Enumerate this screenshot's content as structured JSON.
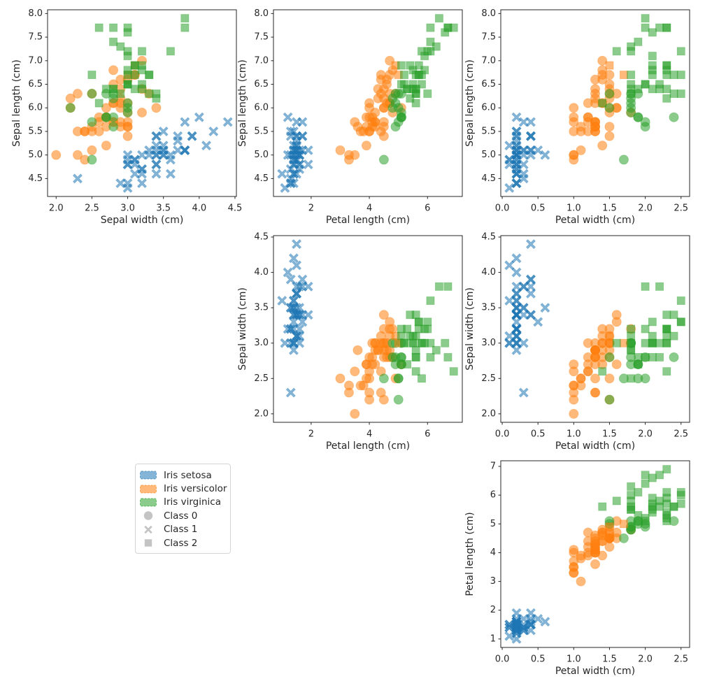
{
  "figure": {
    "background": "#ffffff",
    "text_color": "#262626",
    "spine_color": "#262626"
  },
  "chart_data": {
    "type": "scatter",
    "dataset": "Iris",
    "columns": [
      "sepal_length",
      "sepal_width",
      "petal_length",
      "petal_width",
      "species_index",
      "cluster_index"
    ],
    "species": [
      "Iris setosa",
      "Iris versicolor",
      "Iris virginica"
    ],
    "species_colors": [
      "#1f77b4",
      "#ff7f0e",
      "#2ca02c"
    ],
    "clusters": [
      "Class 0",
      "Class 1",
      "Class 2"
    ],
    "cluster_markers": [
      "circle",
      "x",
      "square"
    ],
    "marker_alpha": 0.55,
    "grid": false,
    "axes": {
      "sepal_length": {
        "label": "Sepal length (cm)",
        "lim": [
          4.12,
          8.08
        ]
      },
      "sepal_width": {
        "label": "Sepal width (cm)",
        "lim": [
          1.88,
          4.52
        ]
      },
      "petal_length": {
        "label": "Petal length (cm)",
        "lim": [
          0.705,
          7.195
        ]
      },
      "petal_width": {
        "label": "Petal width (cm)",
        "lim": [
          -0.02,
          2.62
        ]
      }
    },
    "ticks": {
      "sepal_length": {
        "values": [
          4.5,
          5,
          5.5,
          6,
          6.5,
          7,
          7.5,
          8
        ],
        "labels": [
          "4.5",
          "5.0",
          "5.5",
          "6.0",
          "6.5",
          "7.0",
          "7.5",
          "8.0"
        ]
      },
      "sepal_width": {
        "values": [
          2,
          2.5,
          3,
          3.5,
          4,
          4.5
        ],
        "labels": [
          "2.0",
          "2.5",
          "3.0",
          "3.5",
          "4.0",
          "4.5"
        ]
      },
      "petal_length_x": {
        "values": [
          2,
          4,
          6
        ],
        "labels": [
          "2",
          "4",
          "6"
        ]
      },
      "petal_length_y": {
        "values": [
          1,
          2,
          3,
          4,
          5,
          6,
          7
        ],
        "labels": [
          "1",
          "2",
          "3",
          "4",
          "5",
          "6",
          "7"
        ]
      },
      "petal_width": {
        "values": [
          0,
          0.5,
          1,
          1.5,
          2,
          2.5
        ],
        "labels": [
          "0.0",
          "0.5",
          "1.0",
          "1.5",
          "2.0",
          "2.5"
        ]
      }
    },
    "subplots": [
      {
        "key": "a",
        "x": "sepal_width",
        "y": "sepal_length",
        "xlabel": "Sepal width (cm)",
        "ylabel": "Sepal length (cm)",
        "xticks": "sepal_width",
        "yticks": "sepal_length"
      },
      {
        "key": "b",
        "x": "petal_length",
        "y": "sepal_length",
        "xlabel": "Petal length (cm)",
        "ylabel": "Sepal length (cm)",
        "xticks": "petal_length_x",
        "yticks": "sepal_length"
      },
      {
        "key": "c",
        "x": "petal_width",
        "y": "sepal_length",
        "xlabel": "Petal width (cm)",
        "ylabel": "Sepal length (cm)",
        "xticks": "petal_width",
        "yticks": "sepal_length"
      },
      {
        "key": "d",
        "x": "petal_length",
        "y": "sepal_width",
        "xlabel": "Petal length (cm)",
        "ylabel": "Sepal width (cm)",
        "xticks": "petal_length_x",
        "yticks": "sepal_width"
      },
      {
        "key": "e",
        "x": "petal_width",
        "y": "sepal_width",
        "xlabel": "Petal width (cm)",
        "ylabel": "Sepal width (cm)",
        "xticks": "petal_width",
        "yticks": "sepal_width"
      },
      {
        "key": "f",
        "x": "petal_width",
        "y": "petal_length",
        "xlabel": "Petal width (cm)",
        "ylabel": "Petal length (cm)",
        "xticks": "petal_width",
        "yticks": "petal_length_y"
      }
    ],
    "legend": {
      "marker_color": "#c4c4c4",
      "entries": [
        {
          "label": "Iris setosa",
          "swatch": "patch",
          "color": "#1f77b4"
        },
        {
          "label": "Iris versicolor",
          "swatch": "patch",
          "color": "#ff7f0e"
        },
        {
          "label": "Iris virginica",
          "swatch": "patch",
          "color": "#2ca02c"
        },
        {
          "label": "Class 0",
          "swatch": "marker",
          "marker": "circle"
        },
        {
          "label": "Class 1",
          "swatch": "marker",
          "marker": "x"
        },
        {
          "label": "Class 2",
          "swatch": "marker",
          "marker": "square"
        }
      ]
    },
    "points": [
      [
        5.1,
        3.5,
        1.4,
        0.2,
        0,
        1
      ],
      [
        4.9,
        3.0,
        1.4,
        0.2,
        0,
        1
      ],
      [
        4.7,
        3.2,
        1.3,
        0.2,
        0,
        1
      ],
      [
        4.6,
        3.1,
        1.5,
        0.2,
        0,
        1
      ],
      [
        5.0,
        3.6,
        1.4,
        0.2,
        0,
        1
      ],
      [
        5.4,
        3.9,
        1.7,
        0.4,
        0,
        1
      ],
      [
        4.6,
        3.4,
        1.4,
        0.3,
        0,
        1
      ],
      [
        5.0,
        3.4,
        1.5,
        0.2,
        0,
        1
      ],
      [
        4.4,
        2.9,
        1.4,
        0.2,
        0,
        1
      ],
      [
        4.9,
        3.1,
        1.5,
        0.1,
        0,
        1
      ],
      [
        5.4,
        3.7,
        1.5,
        0.2,
        0,
        1
      ],
      [
        4.8,
        3.4,
        1.6,
        0.2,
        0,
        1
      ],
      [
        4.8,
        3.0,
        1.4,
        0.1,
        0,
        1
      ],
      [
        4.3,
        3.0,
        1.1,
        0.1,
        0,
        1
      ],
      [
        5.8,
        4.0,
        1.2,
        0.2,
        0,
        1
      ],
      [
        5.7,
        4.4,
        1.5,
        0.4,
        0,
        1
      ],
      [
        5.4,
        3.9,
        1.3,
        0.4,
        0,
        1
      ],
      [
        5.1,
        3.5,
        1.4,
        0.3,
        0,
        1
      ],
      [
        5.7,
        3.8,
        1.7,
        0.3,
        0,
        1
      ],
      [
        5.1,
        3.8,
        1.5,
        0.3,
        0,
        1
      ],
      [
        5.4,
        3.4,
        1.7,
        0.2,
        0,
        1
      ],
      [
        5.1,
        3.7,
        1.5,
        0.4,
        0,
        1
      ],
      [
        4.6,
        3.6,
        1.0,
        0.2,
        0,
        1
      ],
      [
        5.1,
        3.3,
        1.7,
        0.5,
        0,
        1
      ],
      [
        4.8,
        3.4,
        1.9,
        0.2,
        0,
        1
      ],
      [
        5.0,
        3.0,
        1.6,
        0.2,
        0,
        1
      ],
      [
        5.0,
        3.4,
        1.6,
        0.4,
        0,
        1
      ],
      [
        5.2,
        3.5,
        1.5,
        0.2,
        0,
        1
      ],
      [
        5.2,
        3.4,
        1.4,
        0.2,
        0,
        1
      ],
      [
        4.7,
        3.2,
        1.6,
        0.2,
        0,
        1
      ],
      [
        4.8,
        3.1,
        1.6,
        0.2,
        0,
        1
      ],
      [
        5.4,
        3.4,
        1.5,
        0.4,
        0,
        1
      ],
      [
        5.2,
        4.1,
        1.5,
        0.1,
        0,
        1
      ],
      [
        5.5,
        4.2,
        1.4,
        0.2,
        0,
        1
      ],
      [
        4.9,
        3.1,
        1.5,
        0.2,
        0,
        1
      ],
      [
        5.0,
        3.2,
        1.2,
        0.2,
        0,
        1
      ],
      [
        5.5,
        3.5,
        1.3,
        0.2,
        0,
        1
      ],
      [
        4.9,
        3.6,
        1.4,
        0.1,
        0,
        1
      ],
      [
        4.4,
        3.0,
        1.3,
        0.2,
        0,
        1
      ],
      [
        5.1,
        3.4,
        1.5,
        0.2,
        0,
        1
      ],
      [
        5.0,
        3.5,
        1.3,
        0.3,
        0,
        1
      ],
      [
        4.5,
        2.3,
        1.3,
        0.3,
        0,
        1
      ],
      [
        4.4,
        3.2,
        1.3,
        0.2,
        0,
        1
      ],
      [
        5.0,
        3.5,
        1.6,
        0.6,
        0,
        1
      ],
      [
        5.1,
        3.8,
        1.9,
        0.4,
        0,
        1
      ],
      [
        4.8,
        3.0,
        1.4,
        0.3,
        0,
        1
      ],
      [
        5.1,
        3.8,
        1.6,
        0.2,
        0,
        1
      ],
      [
        4.6,
        3.2,
        1.4,
        0.2,
        0,
        1
      ],
      [
        5.3,
        3.7,
        1.5,
        0.2,
        0,
        1
      ],
      [
        5.0,
        3.3,
        1.4,
        0.2,
        0,
        1
      ],
      [
        7.0,
        3.2,
        4.7,
        1.4,
        1,
        0
      ],
      [
        6.4,
        3.2,
        4.5,
        1.5,
        1,
        0
      ],
      [
        6.9,
        3.1,
        4.9,
        1.5,
        1,
        2
      ],
      [
        5.5,
        2.3,
        4.0,
        1.3,
        1,
        0
      ],
      [
        6.5,
        2.8,
        4.6,
        1.5,
        1,
        0
      ],
      [
        5.7,
        2.8,
        4.5,
        1.3,
        1,
        0
      ],
      [
        6.3,
        3.3,
        4.7,
        1.6,
        1,
        0
      ],
      [
        4.9,
        2.4,
        3.3,
        1.0,
        1,
        0
      ],
      [
        6.6,
        2.9,
        4.6,
        1.3,
        1,
        0
      ],
      [
        5.2,
        2.7,
        3.9,
        1.4,
        1,
        0
      ],
      [
        5.0,
        2.0,
        3.5,
        1.0,
        1,
        0
      ],
      [
        5.9,
        3.0,
        4.2,
        1.5,
        1,
        0
      ],
      [
        6.0,
        2.2,
        4.0,
        1.0,
        1,
        0
      ],
      [
        6.1,
        2.9,
        4.7,
        1.4,
        1,
        0
      ],
      [
        5.6,
        2.9,
        3.6,
        1.3,
        1,
        0
      ],
      [
        6.7,
        3.1,
        4.4,
        1.4,
        1,
        0
      ],
      [
        5.6,
        3.0,
        4.5,
        1.5,
        1,
        0
      ],
      [
        5.8,
        2.7,
        4.1,
        1.0,
        1,
        0
      ],
      [
        6.2,
        2.2,
        4.5,
        1.5,
        1,
        0
      ],
      [
        5.6,
        2.5,
        3.9,
        1.1,
        1,
        0
      ],
      [
        5.9,
        3.2,
        4.8,
        1.8,
        1,
        0
      ],
      [
        6.1,
        2.8,
        4.0,
        1.3,
        1,
        0
      ],
      [
        6.3,
        2.5,
        4.9,
        1.5,
        1,
        0
      ],
      [
        6.1,
        2.8,
        4.7,
        1.2,
        1,
        0
      ],
      [
        6.4,
        2.9,
        4.3,
        1.3,
        1,
        0
      ],
      [
        6.6,
        3.0,
        4.4,
        1.4,
        1,
        0
      ],
      [
        6.8,
        2.8,
        4.8,
        1.4,
        1,
        0
      ],
      [
        6.7,
        3.0,
        5.0,
        1.7,
        1,
        2
      ],
      [
        6.0,
        2.9,
        4.5,
        1.5,
        1,
        0
      ],
      [
        5.7,
        2.6,
        3.5,
        1.0,
        1,
        0
      ],
      [
        5.5,
        2.4,
        3.8,
        1.1,
        1,
        0
      ],
      [
        5.5,
        2.4,
        3.7,
        1.0,
        1,
        0
      ],
      [
        5.8,
        2.7,
        3.9,
        1.2,
        1,
        0
      ],
      [
        6.0,
        2.7,
        5.1,
        1.6,
        1,
        0
      ],
      [
        5.4,
        3.0,
        4.5,
        1.5,
        1,
        0
      ],
      [
        6.0,
        3.4,
        4.5,
        1.6,
        1,
        0
      ],
      [
        6.7,
        3.1,
        4.7,
        1.5,
        1,
        0
      ],
      [
        6.3,
        2.3,
        4.4,
        1.3,
        1,
        0
      ],
      [
        5.6,
        3.0,
        4.1,
        1.3,
        1,
        0
      ],
      [
        5.5,
        2.5,
        4.0,
        1.3,
        1,
        0
      ],
      [
        5.5,
        2.6,
        4.4,
        1.2,
        1,
        0
      ],
      [
        6.1,
        3.0,
        4.6,
        1.4,
        1,
        0
      ],
      [
        5.8,
        2.6,
        4.0,
        1.2,
        1,
        0
      ],
      [
        5.0,
        2.3,
        3.3,
        1.0,
        1,
        0
      ],
      [
        5.6,
        2.7,
        4.2,
        1.3,
        1,
        0
      ],
      [
        5.7,
        3.0,
        4.2,
        1.2,
        1,
        0
      ],
      [
        5.7,
        2.9,
        4.2,
        1.3,
        1,
        0
      ],
      [
        6.2,
        2.9,
        4.3,
        1.3,
        1,
        0
      ],
      [
        5.1,
        2.5,
        3.0,
        1.1,
        1,
        0
      ],
      [
        5.7,
        2.8,
        4.1,
        1.3,
        1,
        0
      ],
      [
        6.3,
        3.3,
        6.0,
        2.5,
        2,
        2
      ],
      [
        5.8,
        2.7,
        5.1,
        1.9,
        2,
        0
      ],
      [
        7.1,
        3.0,
        5.9,
        2.1,
        2,
        2
      ],
      [
        6.3,
        2.9,
        5.6,
        1.8,
        2,
        2
      ],
      [
        6.5,
        3.0,
        5.8,
        2.2,
        2,
        2
      ],
      [
        7.6,
        3.0,
        6.6,
        2.1,
        2,
        2
      ],
      [
        4.9,
        2.5,
        4.5,
        1.7,
        2,
        0
      ],
      [
        7.3,
        2.9,
        6.3,
        1.8,
        2,
        2
      ],
      [
        6.7,
        2.5,
        5.8,
        1.8,
        2,
        2
      ],
      [
        7.2,
        3.6,
        6.1,
        2.5,
        2,
        2
      ],
      [
        6.5,
        3.2,
        5.1,
        2.0,
        2,
        2
      ],
      [
        6.4,
        2.7,
        5.3,
        1.9,
        2,
        2
      ],
      [
        6.8,
        3.0,
        5.5,
        2.1,
        2,
        2
      ],
      [
        5.7,
        2.5,
        5.0,
        2.0,
        2,
        0
      ],
      [
        5.8,
        2.8,
        5.1,
        2.4,
        2,
        0
      ],
      [
        6.4,
        3.2,
        5.3,
        2.3,
        2,
        2
      ],
      [
        6.5,
        3.0,
        5.5,
        1.8,
        2,
        2
      ],
      [
        7.7,
        3.8,
        6.7,
        2.2,
        2,
        2
      ],
      [
        7.7,
        2.6,
        6.9,
        2.3,
        2,
        2
      ],
      [
        6.0,
        2.2,
        5.0,
        1.5,
        2,
        0
      ],
      [
        6.9,
        3.2,
        5.7,
        2.3,
        2,
        2
      ],
      [
        5.6,
        2.8,
        4.9,
        2.0,
        2,
        0
      ],
      [
        7.7,
        2.8,
        6.7,
        2.0,
        2,
        2
      ],
      [
        6.3,
        2.7,
        4.9,
        1.8,
        2,
        0
      ],
      [
        6.7,
        3.3,
        5.7,
        2.1,
        2,
        2
      ],
      [
        7.2,
        3.2,
        6.0,
        1.8,
        2,
        2
      ],
      [
        6.2,
        2.8,
        4.8,
        1.8,
        2,
        0
      ],
      [
        6.1,
        3.0,
        4.9,
        1.8,
        2,
        0
      ],
      [
        6.4,
        2.8,
        5.6,
        2.1,
        2,
        2
      ],
      [
        7.2,
        3.0,
        5.8,
        1.6,
        2,
        2
      ],
      [
        7.4,
        2.8,
        6.1,
        1.9,
        2,
        2
      ],
      [
        7.9,
        3.8,
        6.4,
        2.0,
        2,
        2
      ],
      [
        6.4,
        2.8,
        5.6,
        2.2,
        2,
        2
      ],
      [
        6.3,
        2.8,
        5.1,
        1.5,
        2,
        0
      ],
      [
        6.1,
        2.6,
        5.6,
        1.4,
        2,
        2
      ],
      [
        7.7,
        3.0,
        6.1,
        2.3,
        2,
        2
      ],
      [
        6.3,
        3.4,
        5.6,
        2.4,
        2,
        2
      ],
      [
        6.4,
        3.1,
        5.5,
        1.8,
        2,
        2
      ],
      [
        6.0,
        3.0,
        4.8,
        1.8,
        2,
        0
      ],
      [
        6.9,
        3.1,
        5.4,
        2.1,
        2,
        2
      ],
      [
        6.7,
        3.1,
        5.6,
        2.4,
        2,
        2
      ],
      [
        6.9,
        3.1,
        5.1,
        2.3,
        2,
        2
      ],
      [
        5.8,
        2.7,
        5.1,
        1.9,
        2,
        0
      ],
      [
        6.8,
        3.2,
        5.9,
        2.3,
        2,
        2
      ],
      [
        6.7,
        3.3,
        5.7,
        2.5,
        2,
        2
      ],
      [
        6.7,
        3.0,
        5.2,
        2.3,
        2,
        2
      ],
      [
        6.3,
        2.5,
        5.0,
        1.9,
        2,
        0
      ],
      [
        6.5,
        3.0,
        5.2,
        2.0,
        2,
        2
      ],
      [
        6.2,
        3.4,
        5.4,
        2.3,
        2,
        2
      ],
      [
        5.9,
        3.0,
        5.1,
        1.8,
        2,
        0
      ]
    ]
  }
}
